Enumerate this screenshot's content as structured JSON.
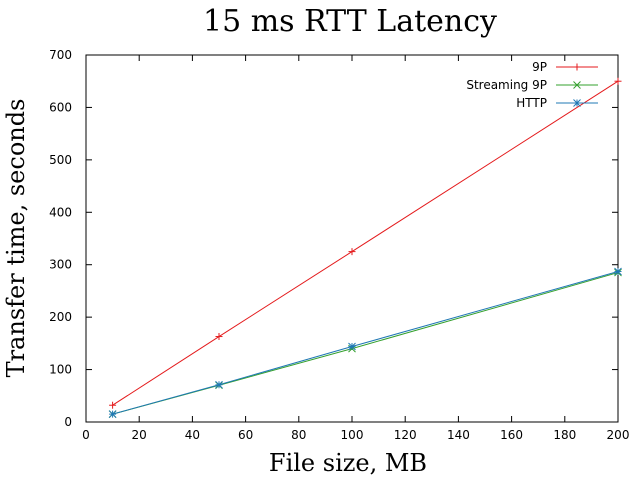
{
  "chart_data": {
    "type": "line",
    "title": "15 ms RTT Latency",
    "xlabel": "File size, MB",
    "ylabel": "Transfer time, seconds",
    "xlim": [
      0,
      200
    ],
    "ylim": [
      0,
      700
    ],
    "xticks": [
      0,
      20,
      40,
      60,
      80,
      100,
      120,
      140,
      160,
      180,
      200
    ],
    "yticks": [
      0,
      100,
      200,
      300,
      400,
      500,
      600,
      700
    ],
    "grid": false,
    "legend_position": "top-right",
    "x": [
      10,
      50,
      100,
      200
    ],
    "series": [
      {
        "name": "9P",
        "values": [
          32,
          163,
          325,
          650
        ],
        "color": "#e41a1c",
        "marker": "plus"
      },
      {
        "name": "Streaming 9P",
        "values": [
          15,
          70,
          140,
          285
        ],
        "color": "#33a02c",
        "marker": "x"
      },
      {
        "name": "HTTP",
        "values": [
          15,
          71,
          144,
          287
        ],
        "color": "#1f78b4",
        "marker": "star"
      }
    ]
  }
}
